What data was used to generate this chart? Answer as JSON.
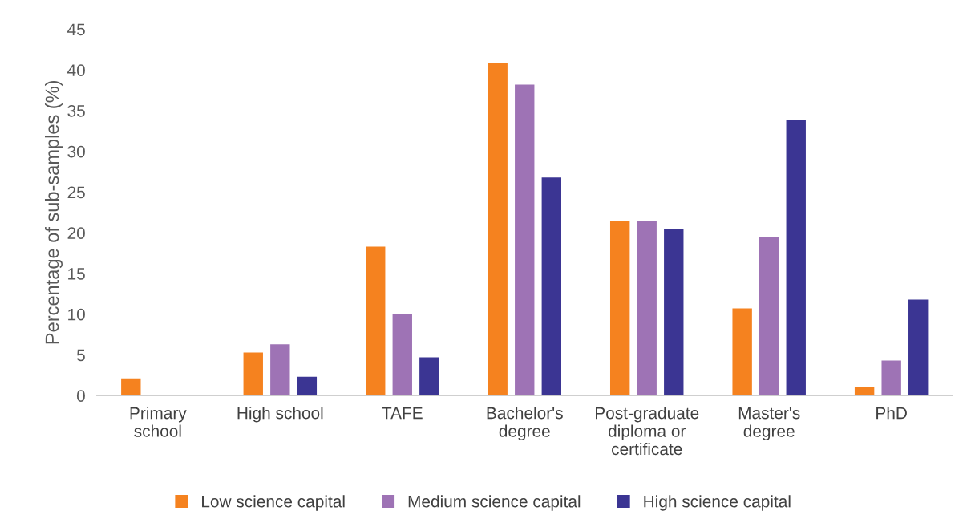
{
  "chart_data": {
    "type": "bar",
    "ylabel": "Percentage of sub-samples (%)",
    "categories": [
      "Primary\nschool",
      "High school",
      "TAFE",
      "Bachelor's\ndegree",
      "Post-graduate\ndiploma or\ncertificate",
      "Master's\ndegree",
      "PhD"
    ],
    "series": [
      {
        "name": "Low science capital",
        "color": "#f5821f",
        "values": [
          2.1,
          5.3,
          18.3,
          40.9,
          21.5,
          10.7,
          1.0
        ]
      },
      {
        "name": "Medium science capital",
        "color": "#9e73b5",
        "values": [
          0,
          6.3,
          10.0,
          38.2,
          21.4,
          19.5,
          4.3
        ]
      },
      {
        "name": "High science capital",
        "color": "#3b3593",
        "values": [
          0,
          2.3,
          4.7,
          26.8,
          20.4,
          33.8,
          11.8
        ]
      }
    ],
    "ylim": [
      0,
      45
    ],
    "yticks": [
      0,
      5,
      10,
      15,
      20,
      25,
      30,
      35,
      40,
      45
    ],
    "grid": false,
    "legend": "bottom"
  }
}
